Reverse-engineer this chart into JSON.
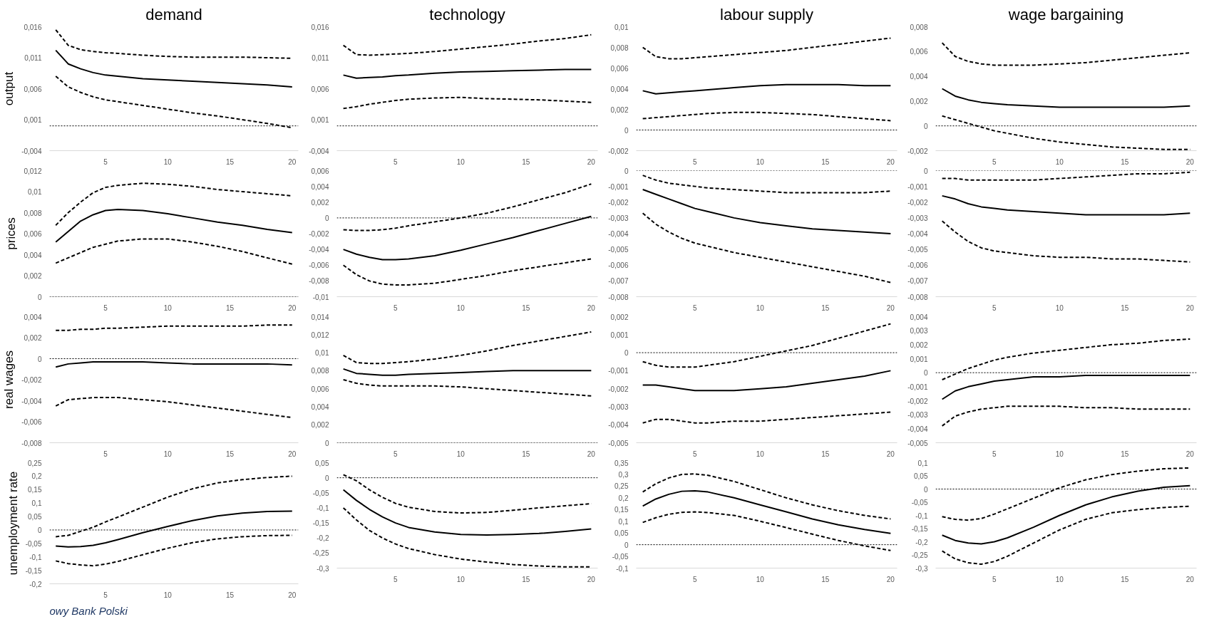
{
  "chart_data": [
    {
      "type": "line",
      "title": "demand",
      "ylabel": "output",
      "x": [
        1,
        2,
        3,
        4,
        5,
        6,
        8,
        10,
        12,
        14,
        16,
        18,
        20
      ],
      "xlim": [
        0.5,
        20.5
      ],
      "xticks": [
        5,
        10,
        15,
        20
      ],
      "ylim": [
        -0.004,
        0.016
      ],
      "yticks": [
        {
          "value": -0.004,
          "label": "-0,004"
        },
        {
          "value": 0.001,
          "label": "0,001"
        },
        {
          "value": 0.006,
          "label": "0,006"
        },
        {
          "value": 0.011,
          "label": "0,011"
        },
        {
          "value": 0.016,
          "label": "0,016"
        }
      ],
      "ref_lines": [
        {
          "axis": "y",
          "value": 0,
          "line_style": "dotted",
          "color": "#000000"
        }
      ],
      "series": [
        {
          "color": "#000000",
          "line_style": "solid",
          "values": [
            0.0122,
            0.01,
            0.0092,
            0.0086,
            0.0082,
            0.008,
            0.0076,
            0.0074,
            0.0072,
            0.007,
            0.0068,
            0.0066,
            0.0063
          ]
        },
        {
          "color": "#000000",
          "line_style": "dashed",
          "values": [
            0.0155,
            0.013,
            0.0123,
            0.012,
            0.0118,
            0.0117,
            0.0114,
            0.0112,
            0.0111,
            0.0111,
            0.0111,
            0.011,
            0.0109
          ]
        },
        {
          "color": "#000000",
          "line_style": "dashed",
          "values": [
            0.008,
            0.0063,
            0.0054,
            0.0047,
            0.0042,
            0.0039,
            0.0033,
            0.0027,
            0.0021,
            0.0016,
            0.001,
            0.0004,
            -0.0003
          ]
        }
      ]
    },
    {
      "type": "line",
      "title": "technology",
      "x": [
        1,
        2,
        3,
        4,
        5,
        6,
        8,
        10,
        12,
        14,
        16,
        18,
        20
      ],
      "xlim": [
        0.5,
        20.5
      ],
      "xticks": [
        5,
        10,
        15,
        20
      ],
      "ylim": [
        -0.004,
        0.016
      ],
      "yticks": [
        {
          "value": -0.004,
          "label": "-0,004"
        },
        {
          "value": 0.001,
          "label": "0,001"
        },
        {
          "value": 0.006,
          "label": "0,006"
        },
        {
          "value": 0.011,
          "label": "0,011"
        },
        {
          "value": 0.016,
          "label": "0,016"
        }
      ],
      "ref_lines": [
        {
          "axis": "y",
          "value": 0,
          "line_style": "dotted",
          "color": "#000000"
        }
      ],
      "series": [
        {
          "color": "#000000",
          "line_style": "solid",
          "values": [
            0.0082,
            0.0077,
            0.0078,
            0.0079,
            0.0081,
            0.0082,
            0.0085,
            0.0087,
            0.0088,
            0.0089,
            0.009,
            0.0091,
            0.0091
          ]
        },
        {
          "color": "#000000",
          "line_style": "dashed",
          "values": [
            0.013,
            0.0115,
            0.0114,
            0.0115,
            0.0116,
            0.0117,
            0.012,
            0.0124,
            0.0128,
            0.0132,
            0.0137,
            0.0141,
            0.0147
          ]
        },
        {
          "color": "#000000",
          "line_style": "dashed",
          "values": [
            0.0028,
            0.0031,
            0.0035,
            0.0038,
            0.0041,
            0.0043,
            0.0045,
            0.0046,
            0.0044,
            0.0043,
            0.0042,
            0.004,
            0.0038
          ]
        }
      ]
    },
    {
      "type": "line",
      "title": "labour supply",
      "x": [
        1,
        2,
        3,
        4,
        5,
        6,
        8,
        10,
        12,
        14,
        16,
        18,
        20
      ],
      "xlim": [
        0.5,
        20.5
      ],
      "xticks": [
        5,
        10,
        15,
        20
      ],
      "ylim": [
        -0.002,
        0.01
      ],
      "yticks": [
        {
          "value": -0.002,
          "label": "-0,002"
        },
        0,
        {
          "value": 0.002,
          "label": "0,002"
        },
        {
          "value": 0.004,
          "label": "0,004"
        },
        {
          "value": 0.006,
          "label": "0,006"
        },
        {
          "value": 0.008,
          "label": "0,008"
        },
        {
          "value": 0.01,
          "label": "0,01"
        }
      ],
      "ref_lines": [
        {
          "axis": "y",
          "value": 0,
          "line_style": "dotted",
          "color": "#000000"
        }
      ],
      "series": [
        {
          "color": "#000000",
          "line_style": "solid",
          "values": [
            0.0038,
            0.0035,
            0.0036,
            0.0037,
            0.0038,
            0.0039,
            0.0041,
            0.0043,
            0.0044,
            0.0044,
            0.0044,
            0.0043,
            0.0043
          ]
        },
        {
          "color": "#000000",
          "line_style": "dashed",
          "values": [
            0.008,
            0.0071,
            0.0069,
            0.0069,
            0.007,
            0.0071,
            0.0073,
            0.0075,
            0.0077,
            0.008,
            0.0083,
            0.0086,
            0.0089
          ]
        },
        {
          "color": "#000000",
          "line_style": "dashed",
          "values": [
            0.0011,
            0.0012,
            0.0013,
            0.0014,
            0.0015,
            0.0016,
            0.0017,
            0.0017,
            0.0016,
            0.0015,
            0.0013,
            0.0011,
            0.0009
          ]
        }
      ]
    },
    {
      "type": "line",
      "title": "wage bargaining",
      "x": [
        1,
        2,
        3,
        4,
        5,
        6,
        8,
        10,
        12,
        14,
        16,
        18,
        20
      ],
      "xlim": [
        0.5,
        20.5
      ],
      "xticks": [
        5,
        10,
        15,
        20
      ],
      "ylim": [
        -0.002,
        0.008
      ],
      "yticks": [
        {
          "value": -0.002,
          "label": "-0,002"
        },
        0,
        {
          "value": 0.002,
          "label": "0,002"
        },
        {
          "value": 0.004,
          "label": "0,004"
        },
        {
          "value": 0.006,
          "label": "0,006"
        },
        {
          "value": 0.008,
          "label": "0,008"
        }
      ],
      "ref_lines": [
        {
          "axis": "y",
          "value": 0,
          "line_style": "dotted",
          "color": "#000000"
        }
      ],
      "series": [
        {
          "color": "#000000",
          "line_style": "solid",
          "values": [
            0.003,
            0.0024,
            0.0021,
            0.0019,
            0.0018,
            0.0017,
            0.0016,
            0.0015,
            0.0015,
            0.0015,
            0.0015,
            0.0015,
            0.0016
          ]
        },
        {
          "color": "#000000",
          "line_style": "dashed",
          "values": [
            0.0067,
            0.0056,
            0.0052,
            0.005,
            0.0049,
            0.0049,
            0.0049,
            0.005,
            0.0051,
            0.0053,
            0.0055,
            0.0057,
            0.0059
          ]
        },
        {
          "color": "#000000",
          "line_style": "dashed",
          "values": [
            0.0008,
            0.0005,
            0.0002,
            -0.0001,
            -0.0004,
            -0.0006,
            -0.001,
            -0.0013,
            -0.0015,
            -0.0017,
            -0.0018,
            -0.0019,
            -0.0019
          ]
        }
      ]
    },
    {
      "type": "line",
      "ylabel": "prices",
      "x": [
        1,
        2,
        3,
        4,
        5,
        6,
        8,
        10,
        12,
        14,
        16,
        18,
        20
      ],
      "xlim": [
        0.5,
        20.5
      ],
      "xticks": [
        5,
        10,
        15,
        20
      ],
      "ylim": [
        0,
        0.012
      ],
      "yticks": [
        0,
        {
          "value": 0.002,
          "label": "0,002"
        },
        {
          "value": 0.004,
          "label": "0,004"
        },
        {
          "value": 0.006,
          "label": "0,006"
        },
        {
          "value": 0.008,
          "label": "0,008"
        },
        {
          "value": 0.01,
          "label": "0,01"
        },
        {
          "value": 0.012,
          "label": "0,012"
        }
      ],
      "ref_lines": [
        {
          "axis": "y",
          "value": 0,
          "line_style": "dotted",
          "color": "#000000"
        }
      ],
      "series": [
        {
          "color": "#000000",
          "line_style": "solid",
          "values": [
            0.0052,
            0.0062,
            0.0072,
            0.0078,
            0.0082,
            0.0083,
            0.0082,
            0.0079,
            0.0075,
            0.0071,
            0.0068,
            0.0064,
            0.0061
          ]
        },
        {
          "color": "#000000",
          "line_style": "dashed",
          "values": [
            0.0068,
            0.008,
            0.009,
            0.0099,
            0.0104,
            0.0106,
            0.0108,
            0.0107,
            0.0105,
            0.0102,
            0.01,
            0.0098,
            0.0096
          ]
        },
        {
          "color": "#000000",
          "line_style": "dashed",
          "values": [
            0.0032,
            0.0037,
            0.0042,
            0.0047,
            0.005,
            0.0053,
            0.0055,
            0.0055,
            0.0052,
            0.0048,
            0.0043,
            0.0037,
            0.0031
          ]
        }
      ]
    },
    {
      "type": "line",
      "x": [
        1,
        2,
        3,
        4,
        5,
        6,
        8,
        10,
        12,
        14,
        16,
        18,
        20
      ],
      "xlim": [
        0.5,
        20.5
      ],
      "xticks": [
        5,
        10,
        15,
        20
      ],
      "ylim": [
        -0.01,
        0.006
      ],
      "yticks": [
        {
          "value": -0.01,
          "label": "-0,01"
        },
        {
          "value": -0.008,
          "label": "-0,008"
        },
        {
          "value": -0.006,
          "label": "-0,006"
        },
        {
          "value": -0.004,
          "label": "-0,004"
        },
        {
          "value": -0.002,
          "label": "-0,002"
        },
        0,
        {
          "value": 0.002,
          "label": "0,002"
        },
        {
          "value": 0.004,
          "label": "0,004"
        },
        {
          "value": 0.006,
          "label": "0,006"
        }
      ],
      "ref_lines": [
        {
          "axis": "y",
          "value": 0,
          "line_style": "dotted",
          "color": "#000000"
        }
      ],
      "series": [
        {
          "color": "#000000",
          "line_style": "solid",
          "values": [
            -0.004,
            -0.0046,
            -0.005,
            -0.0053,
            -0.0053,
            -0.0052,
            -0.0048,
            -0.0041,
            -0.0033,
            -0.0025,
            -0.0016,
            -0.0007,
            0.0002
          ]
        },
        {
          "color": "#000000",
          "line_style": "dashed",
          "values": [
            -0.0015,
            -0.0016,
            -0.0016,
            -0.0015,
            -0.0013,
            -0.001,
            -0.0005,
            0.0,
            0.0006,
            0.0014,
            0.0023,
            0.0032,
            0.0043
          ]
        },
        {
          "color": "#000000",
          "line_style": "dashed",
          "values": [
            -0.006,
            -0.0072,
            -0.008,
            -0.0084,
            -0.0085,
            -0.0085,
            -0.0083,
            -0.0078,
            -0.0073,
            -0.0067,
            -0.0062,
            -0.0057,
            -0.0052
          ]
        }
      ]
    },
    {
      "type": "line",
      "x": [
        1,
        2,
        3,
        4,
        5,
        6,
        8,
        10,
        12,
        14,
        16,
        18,
        20
      ],
      "xlim": [
        0.5,
        20.5
      ],
      "xticks": [
        5,
        10,
        15,
        20
      ],
      "ylim": [
        -0.008,
        0
      ],
      "yticks": [
        {
          "value": -0.008,
          "label": "-0,008"
        },
        {
          "value": -0.007,
          "label": "-0,007"
        },
        {
          "value": -0.006,
          "label": "-0,006"
        },
        {
          "value": -0.005,
          "label": "-0,005"
        },
        {
          "value": -0.004,
          "label": "-0,004"
        },
        {
          "value": -0.003,
          "label": "-0,003"
        },
        {
          "value": -0.002,
          "label": "-0,002"
        },
        {
          "value": -0.001,
          "label": "-0,001"
        },
        0
      ],
      "ref_lines": [
        {
          "axis": "y",
          "value": 0,
          "line_style": "dotted",
          "color": "#000000"
        }
      ],
      "series": [
        {
          "color": "#000000",
          "line_style": "solid",
          "values": [
            -0.0012,
            -0.0015,
            -0.0018,
            -0.0021,
            -0.0024,
            -0.0026,
            -0.003,
            -0.0033,
            -0.0035,
            -0.0037,
            -0.0038,
            -0.0039,
            -0.004
          ]
        },
        {
          "color": "#000000",
          "line_style": "dashed",
          "values": [
            -0.0003,
            -0.0006,
            -0.0008,
            -0.0009,
            -0.001,
            -0.0011,
            -0.0012,
            -0.0013,
            -0.0014,
            -0.0014,
            -0.0014,
            -0.0014,
            -0.0013
          ]
        },
        {
          "color": "#000000",
          "line_style": "dashed",
          "values": [
            -0.0027,
            -0.0034,
            -0.0039,
            -0.0043,
            -0.0046,
            -0.0048,
            -0.0052,
            -0.0055,
            -0.0058,
            -0.0061,
            -0.0064,
            -0.0067,
            -0.0071
          ]
        }
      ]
    },
    {
      "type": "line",
      "x": [
        1,
        2,
        3,
        4,
        5,
        6,
        8,
        10,
        12,
        14,
        16,
        18,
        20
      ],
      "xlim": [
        0.5,
        20.5
      ],
      "xticks": [
        5,
        10,
        15,
        20
      ],
      "ylim": [
        -0.008,
        0
      ],
      "yticks": [
        {
          "value": -0.008,
          "label": "-0,008"
        },
        {
          "value": -0.007,
          "label": "-0,007"
        },
        {
          "value": -0.006,
          "label": "-0,006"
        },
        {
          "value": -0.005,
          "label": "-0,005"
        },
        {
          "value": -0.004,
          "label": "-0,004"
        },
        {
          "value": -0.003,
          "label": "-0,003"
        },
        {
          "value": -0.002,
          "label": "-0,002"
        },
        {
          "value": -0.001,
          "label": "-0,001"
        },
        0
      ],
      "ref_lines": [
        {
          "axis": "y",
          "value": 0,
          "line_style": "dotted",
          "color": "#000000"
        }
      ],
      "series": [
        {
          "color": "#000000",
          "line_style": "solid",
          "values": [
            -0.0016,
            -0.0018,
            -0.0021,
            -0.0023,
            -0.0024,
            -0.0025,
            -0.0026,
            -0.0027,
            -0.0028,
            -0.0028,
            -0.0028,
            -0.0028,
            -0.0027
          ]
        },
        {
          "color": "#000000",
          "line_style": "dashed",
          "values": [
            -0.0005,
            -0.0005,
            -0.0006,
            -0.0006,
            -0.0006,
            -0.0006,
            -0.0006,
            -0.0005,
            -0.0004,
            -0.0003,
            -0.0002,
            -0.0002,
            -0.0001
          ]
        },
        {
          "color": "#000000",
          "line_style": "dashed",
          "values": [
            -0.0032,
            -0.0039,
            -0.0045,
            -0.0049,
            -0.0051,
            -0.0052,
            -0.0054,
            -0.0055,
            -0.0055,
            -0.0056,
            -0.0056,
            -0.0057,
            -0.0058
          ]
        }
      ]
    },
    {
      "type": "line",
      "ylabel": "real wages",
      "x": [
        1,
        2,
        3,
        4,
        5,
        6,
        8,
        10,
        12,
        14,
        16,
        18,
        20
      ],
      "xlim": [
        0.5,
        20.5
      ],
      "xticks": [
        5,
        10,
        15,
        20
      ],
      "ylim": [
        -0.008,
        0.004
      ],
      "yticks": [
        {
          "value": -0.008,
          "label": "-0,008"
        },
        {
          "value": -0.006,
          "label": "-0,006"
        },
        {
          "value": -0.004,
          "label": "-0,004"
        },
        {
          "value": -0.002,
          "label": "-0,002"
        },
        0,
        {
          "value": 0.002,
          "label": "0,002"
        },
        {
          "value": 0.004,
          "label": "0,004"
        }
      ],
      "ref_lines": [
        {
          "axis": "y",
          "value": 0,
          "line_style": "dotted",
          "color": "#000000"
        }
      ],
      "series": [
        {
          "color": "#000000",
          "line_style": "solid",
          "values": [
            -0.0008,
            -0.0005,
            -0.0004,
            -0.0003,
            -0.0003,
            -0.0003,
            -0.0003,
            -0.0004,
            -0.0005,
            -0.0005,
            -0.0005,
            -0.0005,
            -0.0006
          ]
        },
        {
          "color": "#000000",
          "line_style": "dashed",
          "values": [
            0.0027,
            0.0027,
            0.0028,
            0.0028,
            0.0029,
            0.0029,
            0.003,
            0.0031,
            0.0031,
            0.0031,
            0.0031,
            0.0032,
            0.0032
          ]
        },
        {
          "color": "#000000",
          "line_style": "dashed",
          "values": [
            -0.0045,
            -0.0039,
            -0.0038,
            -0.0037,
            -0.0037,
            -0.0037,
            -0.0039,
            -0.0041,
            -0.0044,
            -0.0047,
            -0.005,
            -0.0053,
            -0.0056
          ]
        }
      ]
    },
    {
      "type": "line",
      "x": [
        1,
        2,
        3,
        4,
        5,
        6,
        8,
        10,
        12,
        14,
        16,
        18,
        20
      ],
      "xlim": [
        0.5,
        20.5
      ],
      "xticks": [
        5,
        10,
        15,
        20
      ],
      "ylim": [
        0,
        0.014
      ],
      "yticks": [
        0,
        {
          "value": 0.002,
          "label": "0,002"
        },
        {
          "value": 0.004,
          "label": "0,004"
        },
        {
          "value": 0.006,
          "label": "0,006"
        },
        {
          "value": 0.008,
          "label": "0,008"
        },
        {
          "value": 0.01,
          "label": "0,01"
        },
        {
          "value": 0.012,
          "label": "0,012"
        },
        {
          "value": 0.014,
          "label": "0,014"
        }
      ],
      "ref_lines": [
        {
          "axis": "y",
          "value": 0,
          "line_style": "dotted",
          "color": "#000000"
        }
      ],
      "series": [
        {
          "color": "#000000",
          "line_style": "solid",
          "values": [
            0.0082,
            0.0077,
            0.0076,
            0.0075,
            0.0075,
            0.0076,
            0.0077,
            0.0078,
            0.0079,
            0.008,
            0.008,
            0.008,
            0.008
          ]
        },
        {
          "color": "#000000",
          "line_style": "dashed",
          "values": [
            0.0097,
            0.0089,
            0.0088,
            0.0088,
            0.0089,
            0.009,
            0.0093,
            0.0097,
            0.0102,
            0.0108,
            0.0113,
            0.0118,
            0.0123
          ]
        },
        {
          "color": "#000000",
          "line_style": "dashed",
          "values": [
            0.007,
            0.0066,
            0.0064,
            0.0063,
            0.0063,
            0.0063,
            0.0063,
            0.0062,
            0.006,
            0.0058,
            0.0056,
            0.0054,
            0.0052
          ]
        }
      ]
    },
    {
      "type": "line",
      "x": [
        1,
        2,
        3,
        4,
        5,
        6,
        8,
        10,
        12,
        14,
        16,
        18,
        20
      ],
      "xlim": [
        0.5,
        20.5
      ],
      "xticks": [
        5,
        10,
        15,
        20
      ],
      "ylim": [
        -0.005,
        0.002
      ],
      "yticks": [
        {
          "value": -0.005,
          "label": "-0,005"
        },
        {
          "value": -0.004,
          "label": "-0,004"
        },
        {
          "value": -0.003,
          "label": "-0,003"
        },
        {
          "value": -0.002,
          "label": "-0,002"
        },
        {
          "value": -0.001,
          "label": "-0,001"
        },
        0,
        {
          "value": 0.001,
          "label": "0,001"
        },
        {
          "value": 0.002,
          "label": "0,002"
        }
      ],
      "ref_lines": [
        {
          "axis": "y",
          "value": 0,
          "line_style": "dotted",
          "color": "#000000"
        }
      ],
      "series": [
        {
          "color": "#000000",
          "line_style": "solid",
          "values": [
            -0.0018,
            -0.0018,
            -0.0019,
            -0.002,
            -0.0021,
            -0.0021,
            -0.0021,
            -0.002,
            -0.0019,
            -0.0017,
            -0.0015,
            -0.0013,
            -0.001
          ]
        },
        {
          "color": "#000000",
          "line_style": "dashed",
          "values": [
            -0.0005,
            -0.0007,
            -0.0008,
            -0.0008,
            -0.0008,
            -0.0007,
            -0.0005,
            -0.0002,
            0.0001,
            0.0004,
            0.0008,
            0.0012,
            0.0016
          ]
        },
        {
          "color": "#000000",
          "line_style": "dashed",
          "values": [
            -0.0039,
            -0.0037,
            -0.0037,
            -0.0038,
            -0.0039,
            -0.0039,
            -0.0038,
            -0.0038,
            -0.0037,
            -0.0036,
            -0.0035,
            -0.0034,
            -0.0033
          ]
        }
      ]
    },
    {
      "type": "line",
      "x": [
        1,
        2,
        3,
        4,
        5,
        6,
        8,
        10,
        12,
        14,
        16,
        18,
        20
      ],
      "xlim": [
        0.5,
        20.5
      ],
      "xticks": [
        5,
        10,
        15,
        20
      ],
      "ylim": [
        -0.005,
        0.004
      ],
      "yticks": [
        {
          "value": -0.005,
          "label": "-0,005"
        },
        {
          "value": -0.004,
          "label": "-0,004"
        },
        {
          "value": -0.003,
          "label": "-0,003"
        },
        {
          "value": -0.002,
          "label": "-0,002"
        },
        {
          "value": -0.001,
          "label": "-0,001"
        },
        0,
        {
          "value": 0.001,
          "label": "0,001"
        },
        {
          "value": 0.002,
          "label": "0,002"
        },
        {
          "value": 0.003,
          "label": "0,003"
        },
        {
          "value": 0.004,
          "label": "0,004"
        }
      ],
      "ref_lines": [
        {
          "axis": "y",
          "value": 0,
          "line_style": "dotted",
          "color": "#000000"
        }
      ],
      "series": [
        {
          "color": "#000000",
          "line_style": "solid",
          "values": [
            -0.0019,
            -0.0013,
            -0.001,
            -0.0008,
            -0.0006,
            -0.0005,
            -0.0003,
            -0.0003,
            -0.0002,
            -0.0002,
            -0.0002,
            -0.0002,
            -0.0002
          ]
        },
        {
          "color": "#000000",
          "line_style": "dashed",
          "values": [
            -0.0005,
            -0.0001,
            0.0003,
            0.0006,
            0.0009,
            0.0011,
            0.0014,
            0.0016,
            0.0018,
            0.002,
            0.0021,
            0.0023,
            0.0024
          ]
        },
        {
          "color": "#000000",
          "line_style": "dashed",
          "values": [
            -0.0038,
            -0.0031,
            -0.0028,
            -0.0026,
            -0.0025,
            -0.0024,
            -0.0024,
            -0.0024,
            -0.0025,
            -0.0025,
            -0.0026,
            -0.0026,
            -0.0026
          ]
        }
      ]
    },
    {
      "type": "line",
      "ylabel": "unemployment rate",
      "annotations": [
        "owy Bank Polski"
      ],
      "x": [
        1,
        2,
        3,
        4,
        5,
        6,
        8,
        10,
        12,
        14,
        16,
        18,
        20
      ],
      "xlim": [
        0.5,
        20.5
      ],
      "xticks": [
        5,
        10,
        15,
        20
      ],
      "ylim": [
        -0.2,
        0.25
      ],
      "yticks": [
        {
          "value": -0.2,
          "label": "-0,2"
        },
        {
          "value": -0.15,
          "label": "-0,15"
        },
        {
          "value": -0.1,
          "label": "-0,1"
        },
        {
          "value": -0.05,
          "label": "-0,05"
        },
        0,
        {
          "value": 0.05,
          "label": "0,05"
        },
        {
          "value": 0.1,
          "label": "0,1"
        },
        {
          "value": 0.15,
          "label": "0,15"
        },
        {
          "value": 0.2,
          "label": "0,2"
        },
        {
          "value": 0.25,
          "label": "0,25"
        }
      ],
      "ref_lines": [
        {
          "axis": "y",
          "value": 0,
          "line_style": "dotted",
          "color": "#000000"
        }
      ],
      "series": [
        {
          "color": "#000000",
          "line_style": "solid",
          "values": [
            -0.06,
            -0.063,
            -0.062,
            -0.057,
            -0.048,
            -0.036,
            -0.01,
            0.013,
            0.035,
            0.052,
            0.063,
            0.069,
            0.07
          ]
        },
        {
          "color": "#000000",
          "line_style": "dashed",
          "values": [
            -0.025,
            -0.02,
            -0.005,
            0.01,
            0.03,
            0.048,
            0.085,
            0.122,
            0.153,
            0.175,
            0.187,
            0.195,
            0.2
          ]
        },
        {
          "color": "#000000",
          "line_style": "dashed",
          "values": [
            -0.115,
            -0.125,
            -0.13,
            -0.133,
            -0.127,
            -0.117,
            -0.092,
            -0.068,
            -0.047,
            -0.033,
            -0.025,
            -0.021,
            -0.02
          ]
        }
      ]
    },
    {
      "type": "line",
      "x": [
        1,
        2,
        3,
        4,
        5,
        6,
        8,
        10,
        12,
        14,
        16,
        18,
        20
      ],
      "xlim": [
        0.5,
        20.5
      ],
      "xticks": [
        5,
        10,
        15,
        20
      ],
      "ylim": [
        -0.3,
        0.05
      ],
      "yticks": [
        {
          "value": -0.3,
          "label": "-0,3"
        },
        {
          "value": -0.25,
          "label": "-0,25"
        },
        {
          "value": -0.2,
          "label": "-0,2"
        },
        {
          "value": -0.15,
          "label": "-0,15"
        },
        {
          "value": -0.1,
          "label": "-0,1"
        },
        {
          "value": -0.05,
          "label": "-0,05"
        },
        0,
        {
          "value": 0.05,
          "label": "0,05"
        }
      ],
      "ref_lines": [
        {
          "axis": "y",
          "value": 0,
          "line_style": "dotted",
          "color": "#000000"
        }
      ],
      "series": [
        {
          "color": "#000000",
          "line_style": "solid",
          "values": [
            -0.04,
            -0.075,
            -0.105,
            -0.13,
            -0.15,
            -0.165,
            -0.18,
            -0.188,
            -0.19,
            -0.188,
            -0.185,
            -0.178,
            -0.17
          ]
        },
        {
          "color": "#000000",
          "line_style": "dashed",
          "values": [
            0.01,
            -0.01,
            -0.04,
            -0.065,
            -0.085,
            -0.098,
            -0.112,
            -0.117,
            -0.115,
            -0.108,
            -0.1,
            -0.093,
            -0.086
          ]
        },
        {
          "color": "#000000",
          "line_style": "dashed",
          "values": [
            -0.1,
            -0.14,
            -0.175,
            -0.2,
            -0.22,
            -0.235,
            -0.255,
            -0.27,
            -0.28,
            -0.288,
            -0.293,
            -0.296,
            -0.296
          ]
        }
      ]
    },
    {
      "type": "line",
      "x": [
        1,
        2,
        3,
        4,
        5,
        6,
        8,
        10,
        12,
        14,
        16,
        18,
        20
      ],
      "xlim": [
        0.5,
        20.5
      ],
      "xticks": [
        5,
        10,
        15,
        20
      ],
      "ylim": [
        -0.1,
        0.35
      ],
      "yticks": [
        {
          "value": -0.1,
          "label": "-0,1"
        },
        {
          "value": -0.05,
          "label": "-0,05"
        },
        0,
        {
          "value": 0.05,
          "label": "0,05"
        },
        {
          "value": 0.1,
          "label": "0,1"
        },
        {
          "value": 0.15,
          "label": "0,15"
        },
        {
          "value": 0.2,
          "label": "0,2"
        },
        {
          "value": 0.25,
          "label": "0,25"
        },
        {
          "value": 0.3,
          "label": "0,3"
        },
        {
          "value": 0.35,
          "label": "0,35"
        }
      ],
      "ref_lines": [
        {
          "axis": "y",
          "value": 0,
          "line_style": "dotted",
          "color": "#000000"
        }
      ],
      "series": [
        {
          "color": "#000000",
          "line_style": "solid",
          "values": [
            0.165,
            0.195,
            0.215,
            0.228,
            0.23,
            0.225,
            0.2,
            0.17,
            0.14,
            0.11,
            0.085,
            0.065,
            0.048
          ]
        },
        {
          "color": "#000000",
          "line_style": "dashed",
          "values": [
            0.225,
            0.26,
            0.285,
            0.3,
            0.302,
            0.296,
            0.27,
            0.235,
            0.2,
            0.17,
            0.145,
            0.125,
            0.11
          ]
        },
        {
          "color": "#000000",
          "line_style": "dashed",
          "values": [
            0.095,
            0.115,
            0.13,
            0.138,
            0.14,
            0.137,
            0.125,
            0.1,
            0.073,
            0.045,
            0.018,
            -0.005,
            -0.025
          ]
        }
      ]
    },
    {
      "type": "line",
      "x": [
        1,
        2,
        3,
        4,
        5,
        6,
        8,
        10,
        12,
        14,
        16,
        18,
        20
      ],
      "xlim": [
        0.5,
        20.5
      ],
      "xticks": [
        5,
        10,
        15,
        20
      ],
      "ylim": [
        -0.3,
        0.1
      ],
      "yticks": [
        {
          "value": -0.3,
          "label": "-0,3"
        },
        {
          "value": -0.25,
          "label": "-0,25"
        },
        {
          "value": -0.2,
          "label": "-0,2"
        },
        {
          "value": -0.15,
          "label": "-0,15"
        },
        {
          "value": -0.1,
          "label": "-0,1"
        },
        {
          "value": -0.05,
          "label": "-0,05"
        },
        0,
        {
          "value": 0.05,
          "label": "0,05"
        },
        {
          "value": 0.1,
          "label": "0,1"
        }
      ],
      "ref_lines": [
        {
          "axis": "y",
          "value": 0,
          "line_style": "dotted",
          "color": "#000000"
        }
      ],
      "series": [
        {
          "color": "#000000",
          "line_style": "solid",
          "values": [
            -0.175,
            -0.195,
            -0.205,
            -0.208,
            -0.2,
            -0.185,
            -0.145,
            -0.1,
            -0.06,
            -0.03,
            -0.008,
            0.007,
            0.013
          ]
        },
        {
          "color": "#000000",
          "line_style": "dashed",
          "values": [
            -0.105,
            -0.115,
            -0.118,
            -0.112,
            -0.095,
            -0.075,
            -0.035,
            0.005,
            0.035,
            0.055,
            0.068,
            0.077,
            0.08
          ]
        },
        {
          "color": "#000000",
          "line_style": "dashed",
          "values": [
            -0.235,
            -0.265,
            -0.28,
            -0.285,
            -0.275,
            -0.255,
            -0.205,
            -0.155,
            -0.115,
            -0.09,
            -0.078,
            -0.07,
            -0.065
          ]
        }
      ]
    }
  ]
}
